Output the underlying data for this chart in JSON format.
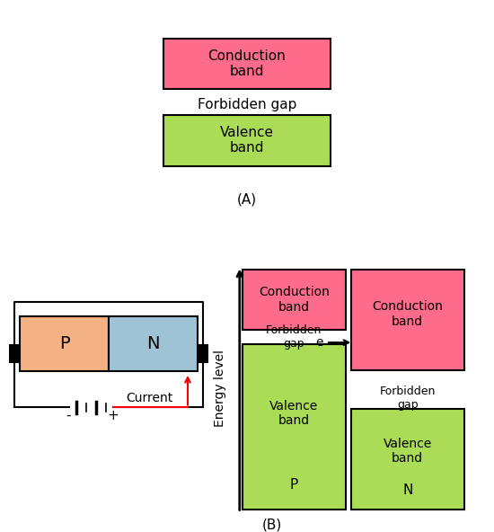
{
  "pink_color": "#FF6B8A",
  "green_color": "#AADD55",
  "p_color": "#F4B183",
  "n_color": "#9DC3D4",
  "bg_color": "#FFFFFF",
  "title_A": "(A)",
  "title_B": "(B)",
  "conduction_band_label": "Conduction\nband",
  "valence_band_label": "Valence\nband",
  "forbidden_gap_label": "Forbidden gap",
  "forbidden_gap_label2": "Forbidden\ngap",
  "energy_level_label": "Energy level",
  "electron_label": "e",
  "current_label": "Current",
  "P_label": "P",
  "N_label": "N",
  "font_size": 11
}
